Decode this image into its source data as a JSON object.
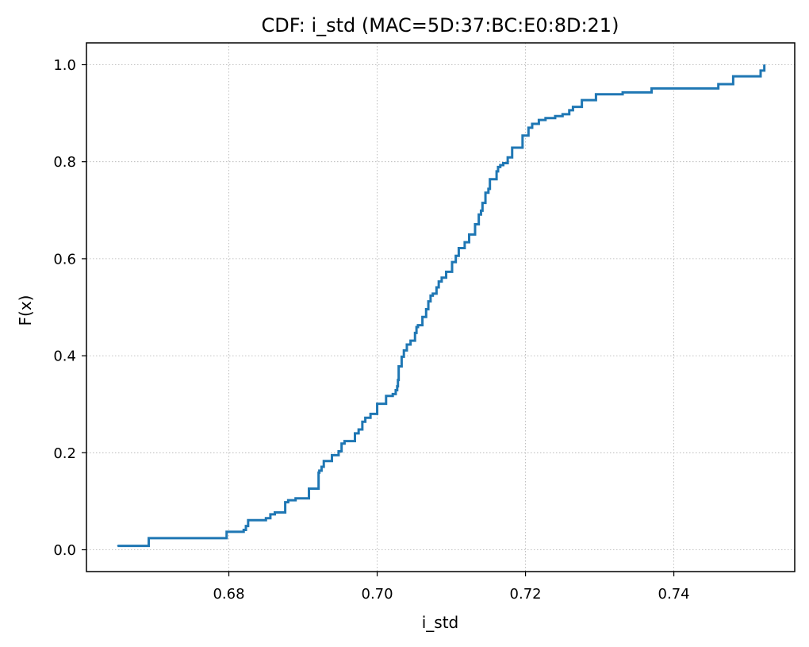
{
  "chart_data": {
    "type": "line",
    "title": "CDF: i_std (MAC=5D:37:BC:E0:8D:21)",
    "xlabel": "i_std",
    "ylabel": "F(x)",
    "xlim": [
      0.6608,
      0.7563
    ],
    "ylim": [
      -0.045,
      1.045
    ],
    "xticks": [
      0.68,
      0.7,
      0.72,
      0.74
    ],
    "xtick_labels": [
      "0.68",
      "0.70",
      "0.72",
      "0.74"
    ],
    "yticks": [
      0.0,
      0.2,
      0.4,
      0.6,
      0.8,
      1.0
    ],
    "ytick_labels": [
      "0.0",
      "0.2",
      "0.4",
      "0.6",
      "0.8",
      "1.0"
    ],
    "grid": true,
    "step": "post",
    "color": "#1f77b4",
    "series": [
      {
        "x": [
          0.665,
          0.6692,
          0.6797,
          0.682,
          0.6823,
          0.6826,
          0.685,
          0.6856,
          0.6862,
          0.6876,
          0.688,
          0.689,
          0.6908,
          0.6921,
          0.6922,
          0.6925,
          0.6928,
          0.6939,
          0.6948,
          0.6952,
          0.6956,
          0.697,
          0.6975,
          0.698,
          0.6984,
          0.6991,
          0.7,
          0.7012,
          0.7021,
          0.7025,
          0.7027,
          0.7028,
          0.7029,
          0.7033,
          0.7036,
          0.704,
          0.7045,
          0.7051,
          0.7053,
          0.7055,
          0.7061,
          0.7066,
          0.7069,
          0.7072,
          0.7075,
          0.708,
          0.7083,
          0.7087,
          0.7093,
          0.7101,
          0.7106,
          0.711,
          0.7118,
          0.7124,
          0.7132,
          0.7137,
          0.714,
          0.7142,
          0.7146,
          0.715,
          0.7152,
          0.7161,
          0.7163,
          0.7166,
          0.717,
          0.7176,
          0.7182,
          0.7196,
          0.7204,
          0.7209,
          0.7218,
          0.7227,
          0.724,
          0.725,
          0.7259,
          0.7264,
          0.7276,
          0.7295,
          0.7331,
          0.737,
          0.746,
          0.748,
          0.7517,
          0.7522
        ],
        "y": [
          0.008,
          0.024,
          0.037,
          0.041,
          0.049,
          0.061,
          0.065,
          0.073,
          0.077,
          0.098,
          0.102,
          0.106,
          0.126,
          0.159,
          0.163,
          0.171,
          0.183,
          0.195,
          0.203,
          0.219,
          0.224,
          0.24,
          0.248,
          0.264,
          0.272,
          0.28,
          0.301,
          0.317,
          0.321,
          0.329,
          0.337,
          0.35,
          0.378,
          0.398,
          0.411,
          0.423,
          0.431,
          0.447,
          0.459,
          0.463,
          0.48,
          0.496,
          0.512,
          0.524,
          0.528,
          0.541,
          0.553,
          0.561,
          0.573,
          0.593,
          0.606,
          0.622,
          0.634,
          0.65,
          0.671,
          0.691,
          0.699,
          0.715,
          0.736,
          0.744,
          0.764,
          0.78,
          0.789,
          0.793,
          0.797,
          0.809,
          0.829,
          0.854,
          0.87,
          0.878,
          0.886,
          0.89,
          0.894,
          0.898,
          0.906,
          0.913,
          0.927,
          0.939,
          0.943,
          0.951,
          0.96,
          0.976,
          0.988,
          1.0
        ]
      }
    ]
  }
}
